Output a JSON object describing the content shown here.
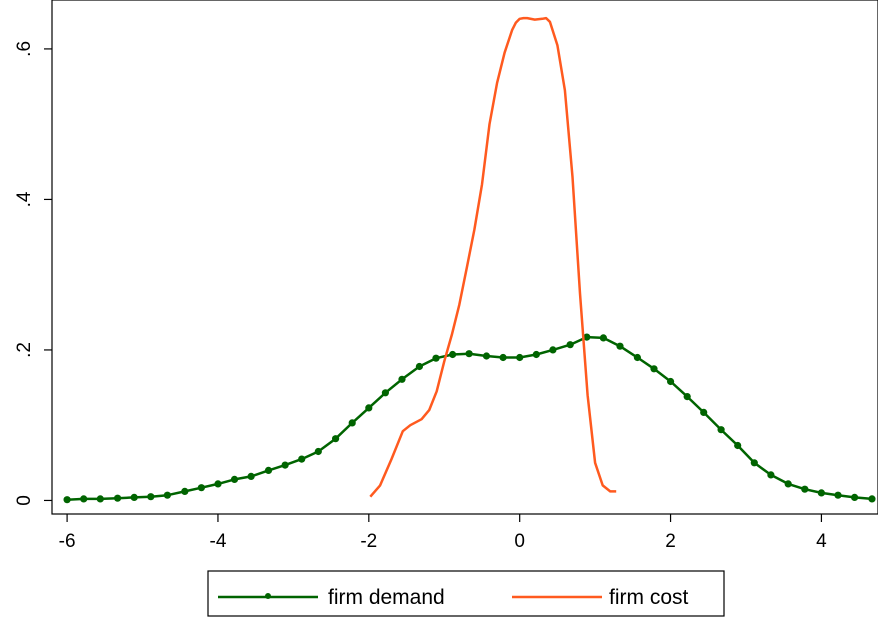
{
  "chart_data": {
    "type": "line",
    "title": "",
    "xlabel": "",
    "ylabel": "",
    "xlim": [
      -6.2,
      4.75
    ],
    "ylim": [
      -0.018,
      0.665
    ],
    "xticks": [
      -6,
      -4,
      -2,
      0,
      2,
      4
    ],
    "xtick_labels": [
      "-6",
      "-4",
      "-2",
      "0",
      "2",
      "4"
    ],
    "yticks": [
      0,
      0.2,
      0.4,
      0.6
    ],
    "ytick_labels": [
      "0",
      ".2",
      ".4",
      ".6"
    ],
    "grid": false,
    "legend_position": "bottom",
    "series": [
      {
        "name": "firm demand",
        "color": "#006400",
        "marker": "circle",
        "x": [
          -6.0,
          -5.78,
          -5.56,
          -5.33,
          -5.11,
          -4.89,
          -4.67,
          -4.44,
          -4.22,
          -4.0,
          -3.78,
          -3.56,
          -3.33,
          -3.11,
          -2.89,
          -2.67,
          -2.44,
          -2.22,
          -2.0,
          -1.78,
          -1.56,
          -1.33,
          -1.11,
          -0.89,
          -0.67,
          -0.44,
          -0.22,
          0.0,
          0.22,
          0.44,
          0.67,
          0.89,
          1.11,
          1.33,
          1.56,
          1.78,
          2.0,
          2.22,
          2.44,
          2.67,
          2.89,
          3.11,
          3.33,
          3.56,
          3.78,
          4.0,
          4.22,
          4.44,
          4.67
        ],
        "y": [
          0.001,
          0.002,
          0.002,
          0.003,
          0.004,
          0.005,
          0.007,
          0.012,
          0.017,
          0.022,
          0.028,
          0.032,
          0.04,
          0.047,
          0.055,
          0.065,
          0.082,
          0.103,
          0.123,
          0.143,
          0.161,
          0.178,
          0.189,
          0.194,
          0.195,
          0.192,
          0.19,
          0.19,
          0.194,
          0.2,
          0.207,
          0.217,
          0.216,
          0.205,
          0.19,
          0.175,
          0.158,
          0.138,
          0.117,
          0.094,
          0.073,
          0.05,
          0.034,
          0.022,
          0.015,
          0.01,
          0.007,
          0.004,
          0.002
        ]
      },
      {
        "name": "firm cost",
        "color": "#ff5a1f",
        "marker": "none",
        "x": [
          -1.98,
          -1.85,
          -1.7,
          -1.55,
          -1.45,
          -1.3,
          -1.2,
          -1.1,
          -1.0,
          -0.9,
          -0.8,
          -0.7,
          -0.6,
          -0.5,
          -0.4,
          -0.3,
          -0.2,
          -0.1,
          -0.05,
          0.0,
          0.05,
          0.1,
          0.2,
          0.3,
          0.35,
          0.4,
          0.5,
          0.6,
          0.7,
          0.8,
          0.9,
          1.0,
          1.1,
          1.2,
          1.28
        ],
        "y": [
          0.005,
          0.02,
          0.055,
          0.092,
          0.1,
          0.108,
          0.12,
          0.145,
          0.185,
          0.22,
          0.26,
          0.31,
          0.36,
          0.42,
          0.5,
          0.555,
          0.595,
          0.625,
          0.635,
          0.64,
          0.641,
          0.641,
          0.639,
          0.64,
          0.641,
          0.636,
          0.605,
          0.545,
          0.43,
          0.275,
          0.14,
          0.05,
          0.02,
          0.012,
          0.012
        ]
      }
    ]
  }
}
